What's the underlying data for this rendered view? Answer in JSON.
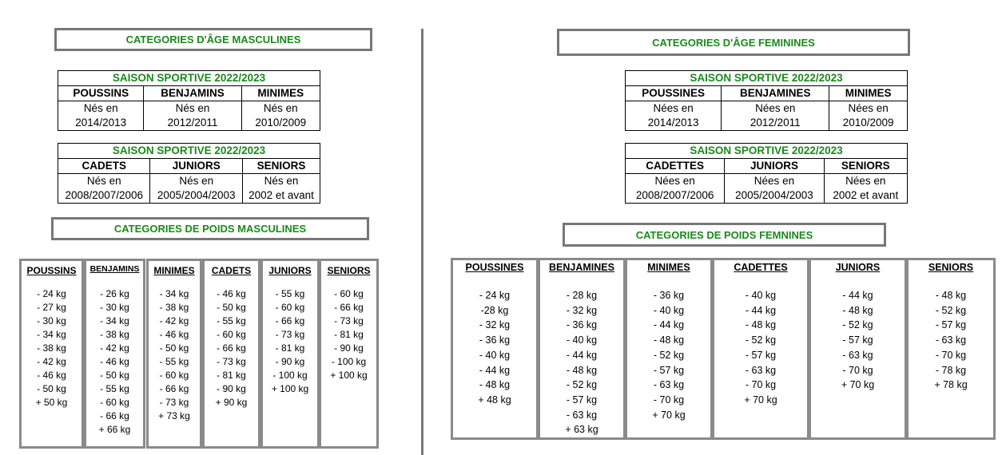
{
  "men": {
    "age_title": "CATEGORIES D'ÂGE MASCULINES",
    "season1": {
      "caption": "SAISON SPORTIVE 2022/2023",
      "categories": [
        "POUSSINS",
        "BENJAMINS",
        "MINIMES"
      ],
      "born": [
        [
          "Nés en",
          "2014/2013"
        ],
        [
          "Nés en",
          "2012/2011"
        ],
        [
          "Nés en",
          "2010/2009"
        ]
      ]
    },
    "season2": {
      "caption": "SAISON SPORTIVE 2022/2023",
      "categories": [
        "CADETS",
        "JUNIORS",
        "SENIORS"
      ],
      "born": [
        [
          "Nés en",
          "2008/2007/2006"
        ],
        [
          "Nés en",
          "2005/2004/2003"
        ],
        [
          "Nés en",
          "2002 et avant"
        ]
      ]
    },
    "weight_title": "CATEGORIES DE POIDS MASCULINES",
    "weights": [
      {
        "name": "POUSSINS",
        "items": [
          "- 24 kg",
          "- 27 kg",
          "- 30 kg",
          "- 34 kg",
          "- 38 kg",
          "- 42 kg",
          "- 46 kg",
          "- 50 kg",
          "+ 50 kg"
        ]
      },
      {
        "name": "BENJAMINS",
        "items": [
          "- 26 kg",
          "- 30 kg",
          "- 34 kg",
          "- 38 kg",
          "- 42 kg",
          "- 46 kg",
          "- 50 kg",
          "- 55 kg",
          "- 60 kg",
          "- 66 kg",
          "+ 66 kg"
        ]
      },
      {
        "name": "MINIMES",
        "items": [
          "- 34 kg",
          "- 38 kg",
          "- 42 kg",
          "- 46 kg",
          "- 50 kg",
          "- 55 kg",
          "- 60 kg",
          "- 66 kg",
          "- 73 kg",
          "+ 73 kg"
        ]
      },
      {
        "name": "CADETS",
        "items": [
          "- 46 kg",
          "- 50 kg",
          "- 55 kg",
          "- 60 kg",
          "- 66 kg",
          "- 73 kg",
          "- 81 kg",
          "- 90 kg",
          "+ 90 kg"
        ]
      },
      {
        "name": "JUNIORS",
        "items": [
          "- 55 kg",
          "- 60 kg",
          "- 66 kg",
          "- 73 kg",
          "- 81 kg",
          "- 90 kg",
          "- 100 kg",
          "+ 100 kg"
        ]
      },
      {
        "name": "SENIORS",
        "items": [
          "- 60 kg",
          "- 66 kg",
          "- 73 kg",
          "- 81 kg",
          "- 90 kg",
          "- 100 kg",
          "+ 100 kg"
        ]
      }
    ]
  },
  "women": {
    "age_title": "CATEGORIES D'ÂGE FEMININES",
    "season1": {
      "caption": "SAISON SPORTIVE 2022/2023",
      "categories": [
        "POUSSINES",
        "BENJAMINES",
        "MINIMES"
      ],
      "born": [
        [
          "Nées en",
          "2014/2013"
        ],
        [
          "Nées en",
          "2012/2011"
        ],
        [
          "Nées en",
          "2010/2009"
        ]
      ]
    },
    "season2": {
      "caption": "SAISON SPORTIVE 2022/2023",
      "categories": [
        "CADETTES",
        "JUNIORS",
        "SENIORS"
      ],
      "born": [
        [
          "Nées en",
          "2008/2007/2006"
        ],
        [
          "Nées en",
          "2005/2004/2003"
        ],
        [
          "Nées en",
          "2002 et avant"
        ]
      ]
    },
    "weight_title": "CATEGORIES DE POIDS FEMNINES",
    "weights": [
      {
        "name": "POUSSINES",
        "items": [
          "- 24 kg",
          "-28 kg",
          "- 32 kg",
          "- 36 kg",
          "- 40 kg",
          "- 44 kg",
          "- 48 kg",
          "+ 48 kg"
        ]
      },
      {
        "name": "BENJAMINES",
        "items": [
          "- 28 kg",
          "- 32 kg",
          "- 36 kg",
          "- 40 kg",
          "- 44 kg",
          "- 48 kg",
          "- 52 kg",
          "- 57 kg",
          "- 63 kg",
          "+ 63 kg"
        ]
      },
      {
        "name": "MINIMES",
        "items": [
          "- 36 kg",
          "- 40 kg",
          "- 44 kg",
          "- 48 kg",
          "- 52 kg",
          "- 57 kg",
          "- 63 kg",
          "- 70 kg",
          "+ 70 kg"
        ]
      },
      {
        "name": "CADETTES",
        "items": [
          "- 40 kg",
          "- 44 kg",
          "- 48 kg",
          "- 52 kg",
          "- 57 kg",
          "- 63 kg",
          "- 70 kg",
          "+ 70 kg"
        ]
      },
      {
        "name": "JUNIORS",
        "items": [
          "- 44 kg",
          "- 48 kg",
          "- 52 kg",
          "- 57 kg",
          "- 63 kg",
          "- 70 kg",
          "+ 70 kg"
        ]
      },
      {
        "name": "SENIORS",
        "items": [
          "- 48 kg",
          "- 52 kg",
          "- 57 kg",
          "- 63 kg",
          "- 70 kg",
          "- 78 kg",
          "+ 78 kg"
        ]
      }
    ]
  },
  "colors": {
    "title_green": "#1a8a1a",
    "box_border": "#777777"
  }
}
